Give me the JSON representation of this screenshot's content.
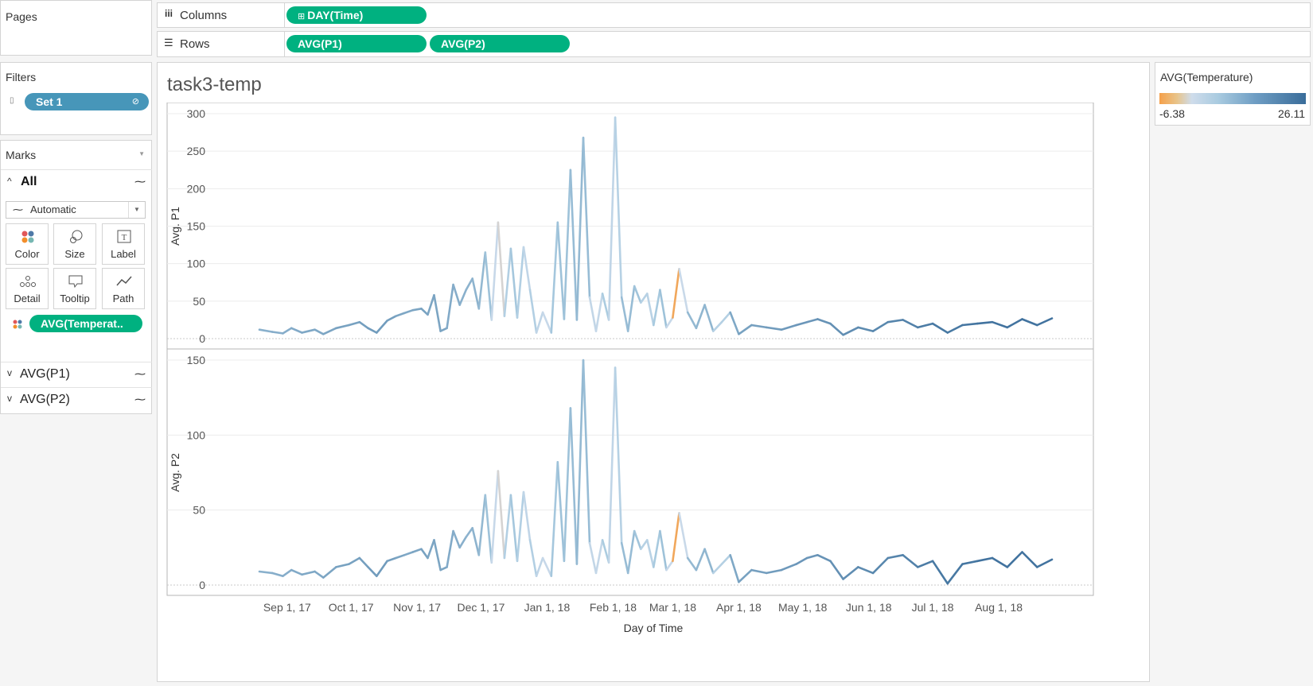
{
  "pages": {
    "label": "Pages"
  },
  "columns": {
    "label": "Columns",
    "pill": "DAY(Time)"
  },
  "rows": {
    "label": "Rows",
    "pills": [
      "AVG(P1)",
      "AVG(P2)"
    ]
  },
  "filters": {
    "label": "Filters",
    "pill": "Set 1"
  },
  "marks": {
    "label": "Marks",
    "all_label": "All",
    "mark_type": "Automatic",
    "buttons": [
      "Color",
      "Size",
      "Label",
      "Detail",
      "Tooltip",
      "Path"
    ],
    "color_pill": "AVG(Temperat..",
    "cards": [
      "AVG(P1)",
      "AVG(P2)"
    ]
  },
  "sheet": {
    "title": "task3-temp"
  },
  "legend": {
    "title": "AVG(Temperature)",
    "min": "-6.38",
    "max": "26.11"
  },
  "colors": {
    "pill_green": "#00b180",
    "pill_blue": "#4796b9",
    "cold": "#f5a04a",
    "mid": "#a9cbe0",
    "warm": "#3a6d9a"
  },
  "chart_data": {
    "type": "line",
    "title": "task3-temp",
    "xlabel": "Day of Time",
    "x_ticks": [
      "Sep 1, 17",
      "Oct 1, 17",
      "Nov 1, 17",
      "Dec 1, 17",
      "Jan 1, 18",
      "Feb 1, 18",
      "Mar 1, 18",
      "Apr 1, 18",
      "May 1, 18",
      "Jun 1, 18",
      "Jul 1, 18",
      "Aug 1, 18"
    ],
    "x_range": [
      "2017-08-19",
      "2018-08-26"
    ],
    "grid": true,
    "panes": [
      {
        "ylabel": "Avg. P1",
        "ylim": [
          0,
          300
        ],
        "y_ticks": [
          "0",
          "50",
          "100",
          "150",
          "200",
          "250",
          "300"
        ],
        "series": [
          {
            "values": [
              [
                "2017-08-19",
                12,
                14
              ],
              [
                "2017-08-25",
                9,
                15
              ],
              [
                "2017-08-30",
                7,
                15
              ],
              [
                "2017-09-03",
                14,
                15
              ],
              [
                "2017-09-08",
                8,
                16
              ],
              [
                "2017-09-14",
                12,
                16
              ],
              [
                "2017-09-18",
                6,
                16
              ],
              [
                "2017-09-24",
                14,
                17
              ],
              [
                "2017-09-30",
                18,
                17
              ],
              [
                "2017-10-05",
                22,
                17
              ],
              [
                "2017-10-09",
                14,
                18
              ],
              [
                "2017-10-13",
                8,
                18
              ],
              [
                "2017-10-18",
                24,
                18
              ],
              [
                "2017-10-22",
                30,
                17
              ],
              [
                "2017-10-26",
                34,
                16
              ],
              [
                "2017-10-30",
                38,
                16
              ],
              [
                "2017-11-03",
                40,
                17
              ],
              [
                "2017-11-06",
                32,
                17
              ],
              [
                "2017-11-09",
                58,
                16
              ],
              [
                "2017-11-12",
                10,
                17
              ],
              [
                "2017-11-15",
                14,
                16
              ],
              [
                "2017-11-18",
                72,
                15
              ],
              [
                "2017-11-21",
                45,
                15
              ],
              [
                "2017-11-24",
                65,
                14
              ],
              [
                "2017-11-27",
                80,
                14
              ],
              [
                "2017-11-30",
                40,
                14
              ],
              [
                "2017-12-03",
                115,
                12
              ],
              [
                "2017-12-06",
                25,
                11
              ],
              [
                "2017-12-09",
                155,
                -4
              ],
              [
                "2017-12-12",
                30,
                5
              ],
              [
                "2017-12-15",
                120,
                11
              ],
              [
                "2017-12-18",
                28,
                10
              ],
              [
                "2017-12-21",
                122,
                6
              ],
              [
                "2017-12-24",
                65,
                4
              ],
              [
                "2017-12-27",
                8,
                12
              ],
              [
                "2017-12-30",
                35,
                -2
              ],
              [
                "2018-01-03",
                8,
                9
              ],
              [
                "2018-01-06",
                155,
                12
              ],
              [
                "2018-01-09",
                26,
                11
              ],
              [
                "2018-01-12",
                225,
                12
              ],
              [
                "2018-01-15",
                25,
                13
              ],
              [
                "2018-01-18",
                268,
                13
              ],
              [
                "2018-01-21",
                55,
                12
              ],
              [
                "2018-01-24",
                10,
                -3
              ],
              [
                "2018-01-27",
                60,
                11
              ],
              [
                "2018-01-30",
                25,
                8
              ],
              [
                "2018-02-02",
                295,
                2
              ],
              [
                "2018-02-05",
                55,
                12
              ],
              [
                "2018-02-08",
                10,
                13
              ],
              [
                "2018-02-11",
                70,
                12
              ],
              [
                "2018-02-14",
                48,
                10
              ],
              [
                "2018-02-17",
                60,
                4
              ],
              [
                "2018-02-20",
                18,
                9
              ],
              [
                "2018-02-23",
                65,
                11
              ],
              [
                "2018-02-26",
                15,
                12
              ],
              [
                "2018-03-01",
                28,
                -5
              ],
              [
                "2018-03-04",
                93,
                -6
              ],
              [
                "2018-03-08",
                35,
                12
              ],
              [
                "2018-03-12",
                14,
                14
              ],
              [
                "2018-03-16",
                45,
                13
              ],
              [
                "2018-03-20",
                10,
                14
              ],
              [
                "2018-03-24",
                22,
                0
              ],
              [
                "2018-03-28",
                35,
                15
              ],
              [
                "2018-04-01",
                6,
                17
              ],
              [
                "2018-04-07",
                18,
                17
              ],
              [
                "2018-04-14",
                15,
                18
              ],
              [
                "2018-04-21",
                12,
                18
              ],
              [
                "2018-04-28",
                18,
                19
              ],
              [
                "2018-05-03",
                22,
                19
              ],
              [
                "2018-05-08",
                26,
                19
              ],
              [
                "2018-05-14",
                20,
                20
              ],
              [
                "2018-05-20",
                5,
                20
              ],
              [
                "2018-05-27",
                15,
                21
              ],
              [
                "2018-06-03",
                10,
                21
              ],
              [
                "2018-06-10",
                22,
                22
              ],
              [
                "2018-06-17",
                25,
                22
              ],
              [
                "2018-06-24",
                15,
                23
              ],
              [
                "2018-07-01",
                20,
                24
              ],
              [
                "2018-07-08",
                8,
                24
              ],
              [
                "2018-07-15",
                18,
                24
              ],
              [
                "2018-07-22",
                20,
                25
              ],
              [
                "2018-07-29",
                22,
                25
              ],
              [
                "2018-08-05",
                15,
                25
              ],
              [
                "2018-08-12",
                26,
                25
              ],
              [
                "2018-08-19",
                18,
                25
              ],
              [
                "2018-08-26",
                27,
                25
              ]
            ]
          }
        ]
      },
      {
        "ylabel": "Avg. P2",
        "ylim": [
          0,
          150
        ],
        "y_ticks": [
          "0",
          "50",
          "100",
          "150"
        ],
        "series": [
          {
            "values": [
              [
                "2017-08-19",
                9,
                14
              ],
              [
                "2017-08-25",
                8,
                15
              ],
              [
                "2017-08-30",
                6,
                15
              ],
              [
                "2017-09-03",
                10,
                15
              ],
              [
                "2017-09-08",
                7,
                16
              ],
              [
                "2017-09-14",
                9,
                16
              ],
              [
                "2017-09-18",
                5,
                16
              ],
              [
                "2017-09-24",
                12,
                17
              ],
              [
                "2017-09-30",
                14,
                17
              ],
              [
                "2017-10-05",
                18,
                17
              ],
              [
                "2017-10-09",
                12,
                18
              ],
              [
                "2017-10-13",
                6,
                18
              ],
              [
                "2017-10-18",
                16,
                18
              ],
              [
                "2017-10-22",
                18,
                17
              ],
              [
                "2017-10-26",
                20,
                16
              ],
              [
                "2017-10-30",
                22,
                16
              ],
              [
                "2017-11-03",
                24,
                17
              ],
              [
                "2017-11-06",
                18,
                17
              ],
              [
                "2017-11-09",
                30,
                16
              ],
              [
                "2017-11-12",
                10,
                17
              ],
              [
                "2017-11-15",
                12,
                16
              ],
              [
                "2017-11-18",
                36,
                15
              ],
              [
                "2017-11-21",
                25,
                15
              ],
              [
                "2017-11-24",
                32,
                14
              ],
              [
                "2017-11-27",
                38,
                14
              ],
              [
                "2017-11-30",
                20,
                14
              ],
              [
                "2017-12-03",
                60,
                12
              ],
              [
                "2017-12-06",
                15,
                11
              ],
              [
                "2017-12-09",
                76,
                -4
              ],
              [
                "2017-12-12",
                18,
                5
              ],
              [
                "2017-12-15",
                60,
                11
              ],
              [
                "2017-12-18",
                16,
                10
              ],
              [
                "2017-12-21",
                62,
                6
              ],
              [
                "2017-12-24",
                30,
                4
              ],
              [
                "2017-12-27",
                6,
                12
              ],
              [
                "2017-12-30",
                18,
                -2
              ],
              [
                "2018-01-03",
                6,
                9
              ],
              [
                "2018-01-06",
                82,
                12
              ],
              [
                "2018-01-09",
                16,
                11
              ],
              [
                "2018-01-12",
                118,
                12
              ],
              [
                "2018-01-15",
                14,
                13
              ],
              [
                "2018-01-18",
                150,
                13
              ],
              [
                "2018-01-21",
                28,
                12
              ],
              [
                "2018-01-24",
                8,
                -3
              ],
              [
                "2018-01-27",
                30,
                11
              ],
              [
                "2018-01-30",
                15,
                8
              ],
              [
                "2018-02-02",
                145,
                2
              ],
              [
                "2018-02-05",
                28,
                12
              ],
              [
                "2018-02-08",
                8,
                13
              ],
              [
                "2018-02-11",
                36,
                12
              ],
              [
                "2018-02-14",
                24,
                10
              ],
              [
                "2018-02-17",
                30,
                4
              ],
              [
                "2018-02-20",
                12,
                9
              ],
              [
                "2018-02-23",
                36,
                11
              ],
              [
                "2018-02-26",
                10,
                12
              ],
              [
                "2018-03-01",
                16,
                -5
              ],
              [
                "2018-03-04",
                48,
                -6
              ],
              [
                "2018-03-08",
                18,
                12
              ],
              [
                "2018-03-12",
                10,
                14
              ],
              [
                "2018-03-16",
                24,
                13
              ],
              [
                "2018-03-20",
                8,
                14
              ],
              [
                "2018-03-24",
                14,
                0
              ],
              [
                "2018-03-28",
                20,
                15
              ],
              [
                "2018-04-01",
                2,
                17
              ],
              [
                "2018-04-07",
                10,
                17
              ],
              [
                "2018-04-14",
                8,
                18
              ],
              [
                "2018-04-21",
                10,
                18
              ],
              [
                "2018-04-28",
                14,
                19
              ],
              [
                "2018-05-03",
                18,
                19
              ],
              [
                "2018-05-08",
                20,
                19
              ],
              [
                "2018-05-14",
                16,
                20
              ],
              [
                "2018-05-20",
                4,
                20
              ],
              [
                "2018-05-27",
                12,
                21
              ],
              [
                "2018-06-03",
                8,
                21
              ],
              [
                "2018-06-10",
                18,
                22
              ],
              [
                "2018-06-17",
                20,
                22
              ],
              [
                "2018-06-24",
                12,
                23
              ],
              [
                "2018-07-01",
                16,
                24
              ],
              [
                "2018-07-08",
                1,
                24
              ],
              [
                "2018-07-15",
                14,
                24
              ],
              [
                "2018-07-22",
                16,
                25
              ],
              [
                "2018-07-29",
                18,
                25
              ],
              [
                "2018-08-05",
                12,
                25
              ],
              [
                "2018-08-12",
                22,
                25
              ],
              [
                "2018-08-19",
                12,
                25
              ],
              [
                "2018-08-26",
                17,
                25
              ]
            ]
          }
        ]
      }
    ],
    "color_encoding": {
      "field": "AVG(Temperature)",
      "min": -6.38,
      "max": 26.11
    }
  }
}
